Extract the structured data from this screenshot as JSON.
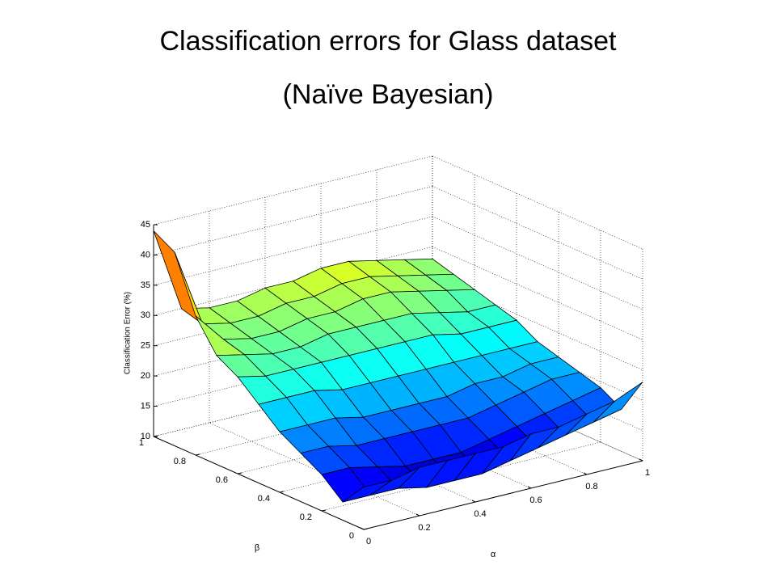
{
  "chart_data": {
    "type": "surface",
    "title": "Classification errors for Glass dataset",
    "subtitle": "(Naïve Bayesian)",
    "xlabel": "α",
    "ylabel": "β",
    "zlabel": "Classification Error (%)",
    "x": [
      0,
      0.1,
      0.2,
      0.3,
      0.4,
      0.5,
      0.6,
      0.7,
      0.8,
      0.9,
      1
    ],
    "y": [
      0,
      0.1,
      0.2,
      0.3,
      0.4,
      0.5,
      0.6,
      0.7,
      0.8,
      0.9,
      1
    ],
    "z": [
      [
        17,
        17,
        18,
        18,
        18,
        18,
        19,
        19,
        20,
        21,
        23
      ],
      [
        13,
        13,
        13,
        12,
        12,
        12,
        13,
        14,
        15,
        16,
        17
      ],
      [
        16,
        16,
        15,
        14,
        14,
        14,
        15,
        16,
        17,
        18,
        19
      ],
      [
        18,
        18,
        17,
        17,
        17,
        17,
        17,
        18,
        19,
        20,
        20
      ],
      [
        20,
        20,
        20,
        19,
        19,
        19,
        19,
        20,
        20,
        21,
        21
      ],
      [
        23,
        23,
        23,
        22,
        22,
        22,
        22,
        22,
        22,
        22,
        22
      ],
      [
        26,
        25,
        25,
        25,
        25,
        25,
        25,
        25,
        24,
        24,
        24
      ],
      [
        28,
        27,
        26,
        26,
        27,
        27,
        27,
        27,
        26,
        25,
        25
      ],
      [
        33,
        28,
        27,
        27,
        28,
        28,
        29,
        29,
        28,
        27,
        26
      ],
      [
        42,
        29,
        28,
        28,
        29,
        29,
        30,
        30,
        29,
        28,
        27
      ],
      [
        44,
        30,
        29,
        29,
        30,
        30,
        31,
        31,
        30,
        29,
        28
      ]
    ],
    "colormap": "jet",
    "xlim": [
      0,
      1
    ],
    "ylim": [
      0,
      1
    ],
    "zlim": [
      10,
      45
    ],
    "xticks": [
      0,
      0.2,
      0.4,
      0.6,
      0.8,
      1
    ],
    "yticks": [
      0,
      0.2,
      0.4,
      0.6,
      0.8,
      1
    ],
    "zticks": [
      10,
      15,
      20,
      25,
      30,
      35,
      40,
      45
    ],
    "grid": true
  }
}
